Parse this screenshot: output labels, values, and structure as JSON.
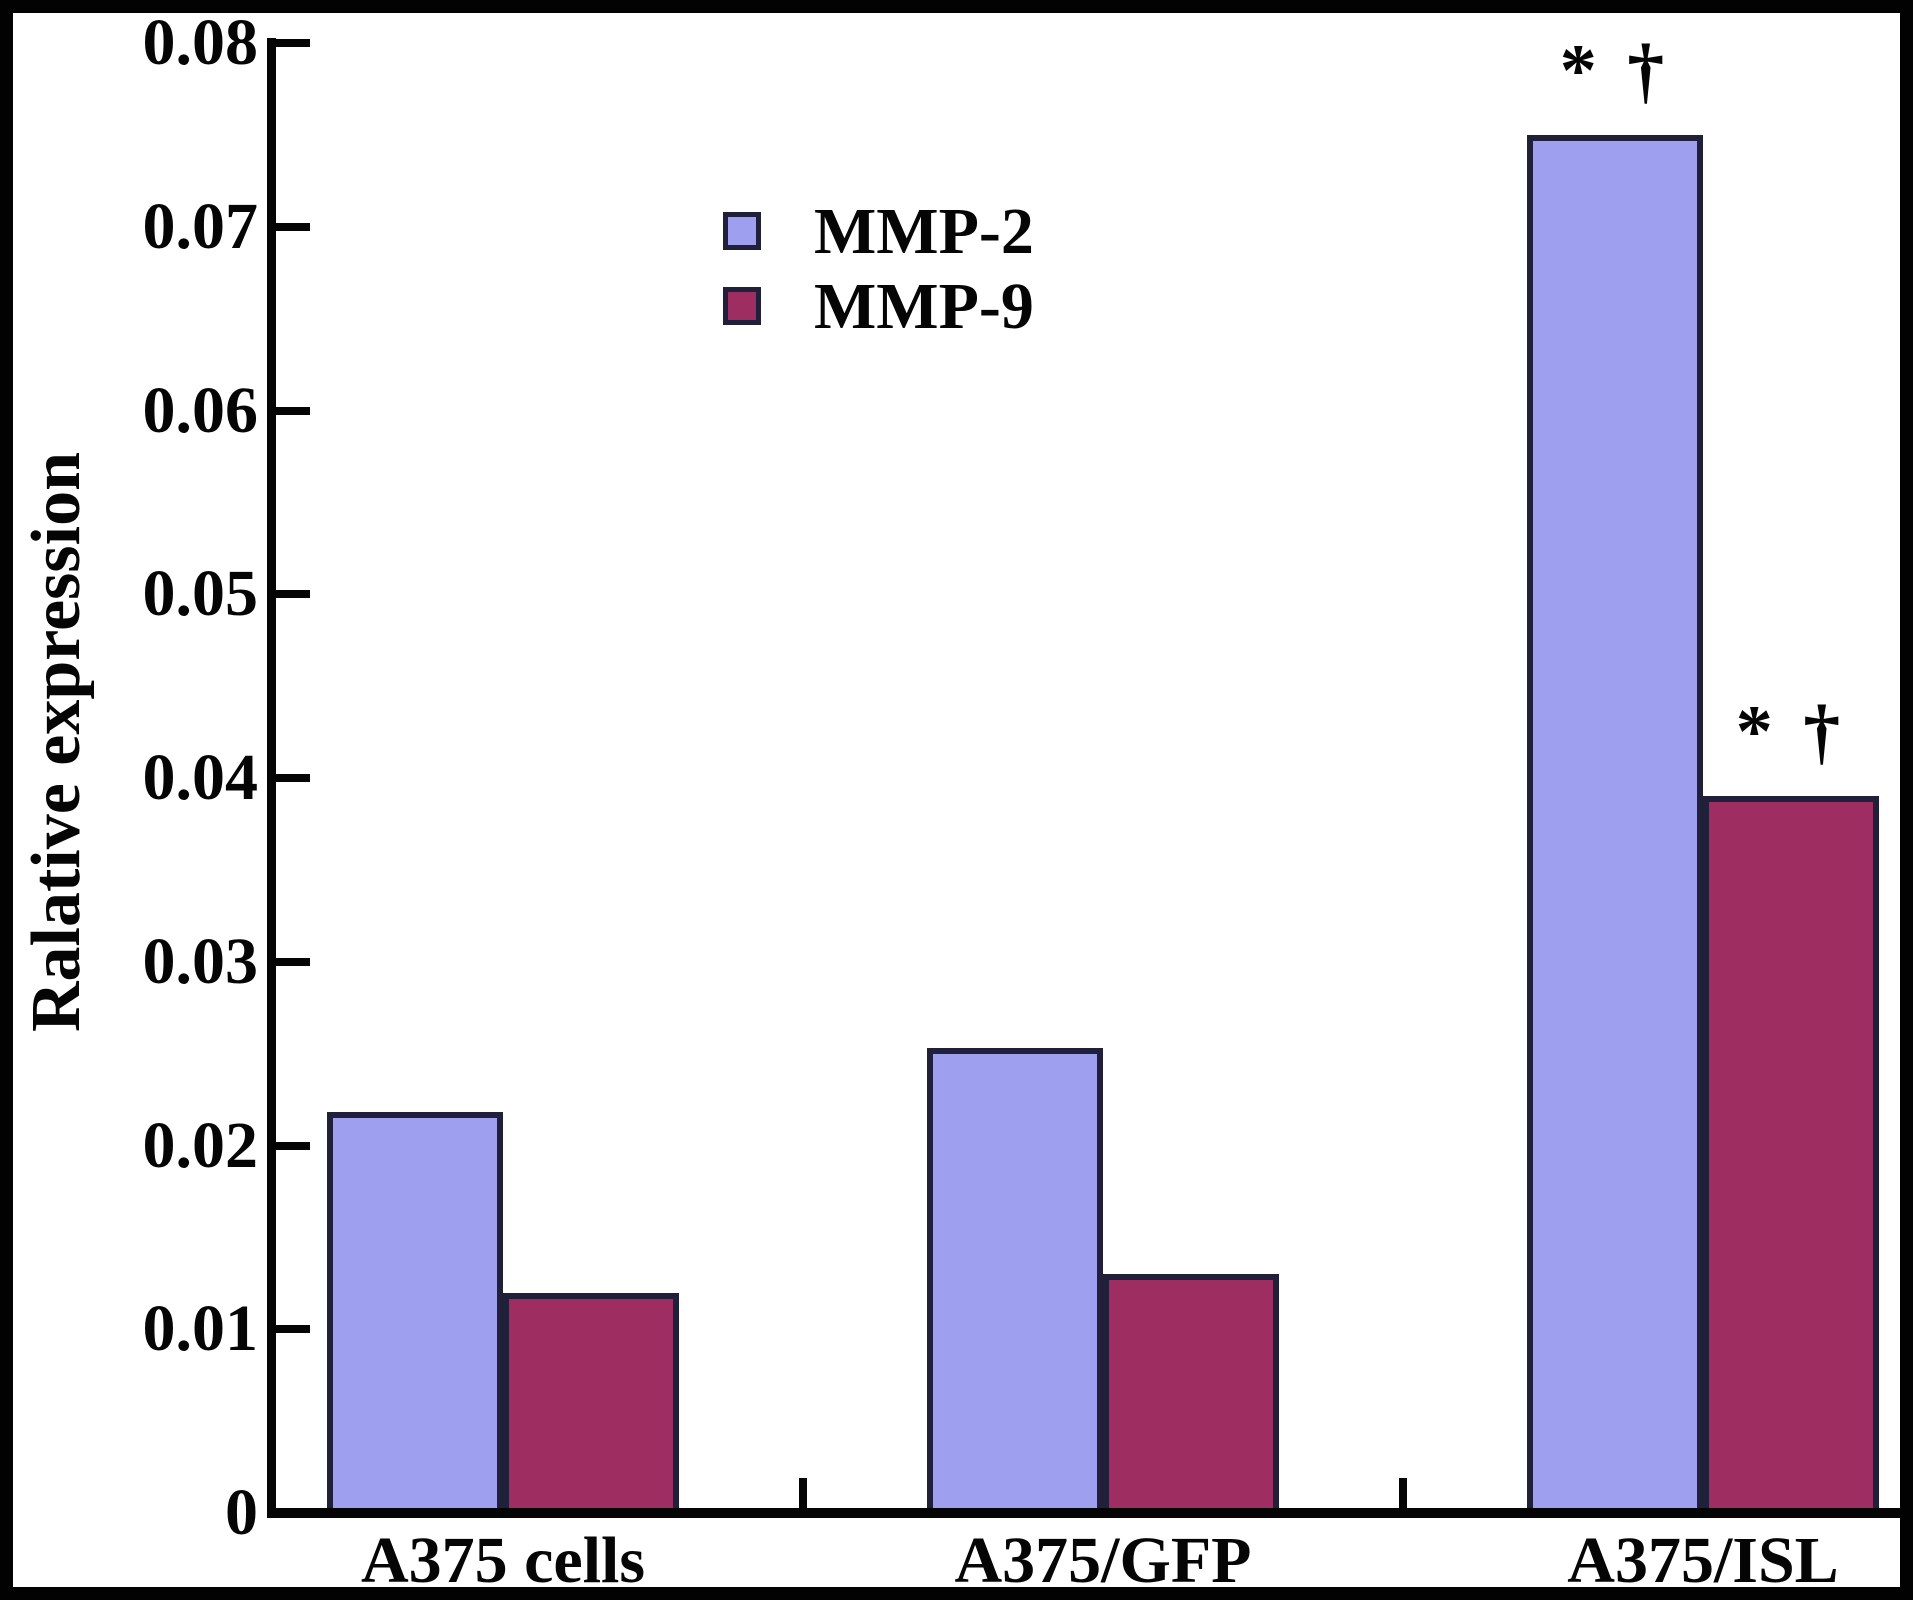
{
  "figure": {
    "background": "#ffffff",
    "frame_color": "#020202",
    "axis_color": "#050505"
  },
  "chart_data": {
    "type": "bar",
    "title": "",
    "xlabel": "",
    "ylabel": "Ralative expression",
    "categories": [
      "A375 cells",
      "A375/GFP",
      "A375/ISL"
    ],
    "series": [
      {
        "name": "MMP-2",
        "color": "#9f9ff0",
        "values": [
          0.0218,
          0.0253,
          0.075
        ]
      },
      {
        "name": "MMP-9",
        "color": "#9e2e62",
        "values": [
          0.012,
          0.013,
          0.039
        ]
      }
    ],
    "annotations": [
      {
        "series_index": 0,
        "category_index": 2,
        "text": "* †"
      },
      {
        "series_index": 1,
        "category_index": 2,
        "text": "* †"
      }
    ],
    "ylim": [
      0,
      0.08
    ],
    "yticks": [
      0,
      0.01,
      0.02,
      0.03,
      0.04,
      0.05,
      0.06,
      0.07,
      0.08
    ],
    "ytick_labels": [
      "0",
      "0.01",
      "0.02",
      "0.03",
      "0.04",
      "0.05",
      "0.06",
      "0.07",
      "0.08"
    ],
    "grid": false,
    "legend_position": "upper-left-inside"
  }
}
